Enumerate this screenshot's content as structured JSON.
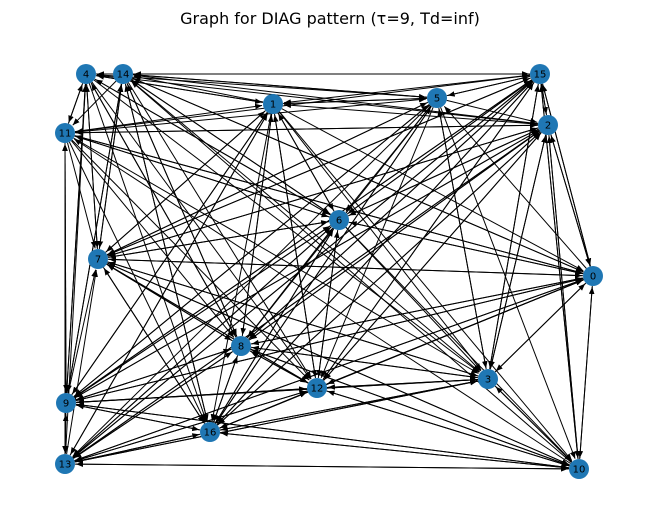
{
  "title": "Graph for DIAG pattern (τ=9, Td=inf)",
  "colors": {
    "node": "#1f77b4",
    "edge": "#000000",
    "background": "#ffffff"
  },
  "graph": {
    "directed": true,
    "node_ids": [
      "0",
      "1",
      "2",
      "3",
      "4",
      "5",
      "6",
      "7",
      "8",
      "9",
      "10",
      "11",
      "12",
      "13",
      "14",
      "15",
      "16"
    ],
    "edges": [
      [
        "4",
        "15"
      ],
      [
        "14",
        "15"
      ],
      [
        "4",
        "1"
      ],
      [
        "14",
        "5"
      ],
      [
        "11",
        "1"
      ],
      [
        "11",
        "5"
      ],
      [
        "11",
        "2"
      ],
      [
        "15",
        "14"
      ],
      [
        "15",
        "4"
      ],
      [
        "15",
        "1"
      ],
      [
        "15",
        "11"
      ],
      [
        "2",
        "14"
      ],
      [
        "2",
        "4"
      ],
      [
        "2",
        "1"
      ],
      [
        "2",
        "11"
      ],
      [
        "5",
        "14"
      ],
      [
        "5",
        "4"
      ],
      [
        "1",
        "14"
      ],
      [
        "1",
        "4"
      ],
      [
        "1",
        "5"
      ],
      [
        "5",
        "1"
      ],
      [
        "15",
        "2"
      ],
      [
        "2",
        "15"
      ],
      [
        "5",
        "15"
      ],
      [
        "15",
        "5"
      ],
      [
        "5",
        "2"
      ],
      [
        "4",
        "11"
      ],
      [
        "14",
        "11"
      ],
      [
        "11",
        "4"
      ],
      [
        "4",
        "7"
      ],
      [
        "14",
        "7"
      ],
      [
        "11",
        "7"
      ],
      [
        "4",
        "9"
      ],
      [
        "14",
        "9"
      ],
      [
        "11",
        "9"
      ],
      [
        "11",
        "13"
      ],
      [
        "4",
        "13"
      ],
      [
        "9",
        "11"
      ],
      [
        "13",
        "11"
      ],
      [
        "7",
        "4"
      ],
      [
        "7",
        "14"
      ],
      [
        "9",
        "4"
      ],
      [
        "9",
        "7"
      ],
      [
        "14",
        "6"
      ],
      [
        "14",
        "8"
      ],
      [
        "14",
        "12"
      ],
      [
        "14",
        "3"
      ],
      [
        "14",
        "16"
      ],
      [
        "14",
        "0"
      ],
      [
        "4",
        "6"
      ],
      [
        "4",
        "8"
      ],
      [
        "4",
        "12"
      ],
      [
        "4",
        "16"
      ],
      [
        "4",
        "3"
      ],
      [
        "11",
        "6"
      ],
      [
        "11",
        "8"
      ],
      [
        "11",
        "12"
      ],
      [
        "11",
        "3"
      ],
      [
        "11",
        "0"
      ],
      [
        "11",
        "16"
      ],
      [
        "1",
        "7"
      ],
      [
        "1",
        "9"
      ],
      [
        "1",
        "13"
      ],
      [
        "1",
        "8"
      ],
      [
        "1",
        "16"
      ],
      [
        "1",
        "12"
      ],
      [
        "1",
        "3"
      ],
      [
        "1",
        "6"
      ],
      [
        "1",
        "0"
      ],
      [
        "1",
        "10"
      ],
      [
        "5",
        "7"
      ],
      [
        "5",
        "9"
      ],
      [
        "5",
        "13"
      ],
      [
        "5",
        "8"
      ],
      [
        "5",
        "16"
      ],
      [
        "5",
        "12"
      ],
      [
        "5",
        "3"
      ],
      [
        "5",
        "10"
      ],
      [
        "5",
        "6"
      ],
      [
        "15",
        "7"
      ],
      [
        "15",
        "9"
      ],
      [
        "15",
        "13"
      ],
      [
        "15",
        "8"
      ],
      [
        "15",
        "16"
      ],
      [
        "15",
        "12"
      ],
      [
        "15",
        "6"
      ],
      [
        "15",
        "3"
      ],
      [
        "15",
        "0"
      ],
      [
        "15",
        "10"
      ],
      [
        "2",
        "7"
      ],
      [
        "2",
        "9"
      ],
      [
        "2",
        "13"
      ],
      [
        "2",
        "8"
      ],
      [
        "2",
        "16"
      ],
      [
        "2",
        "12"
      ],
      [
        "2",
        "6"
      ],
      [
        "2",
        "3"
      ],
      [
        "2",
        "0"
      ],
      [
        "2",
        "10"
      ],
      [
        "6",
        "7"
      ],
      [
        "6",
        "9"
      ],
      [
        "6",
        "13"
      ],
      [
        "6",
        "16"
      ],
      [
        "6",
        "8"
      ],
      [
        "6",
        "12"
      ],
      [
        "6",
        "3"
      ],
      [
        "6",
        "0"
      ],
      [
        "6",
        "10"
      ],
      [
        "6",
        "14"
      ],
      [
        "6",
        "4"
      ],
      [
        "6",
        "11"
      ],
      [
        "6",
        "1"
      ],
      [
        "6",
        "15"
      ],
      [
        "6",
        "2"
      ],
      [
        "7",
        "0"
      ],
      [
        "7",
        "3"
      ],
      [
        "7",
        "12"
      ],
      [
        "7",
        "8"
      ],
      [
        "7",
        "16"
      ],
      [
        "7",
        "10"
      ],
      [
        "7",
        "6"
      ],
      [
        "7",
        "1"
      ],
      [
        "7",
        "5"
      ],
      [
        "7",
        "15"
      ],
      [
        "7",
        "2"
      ],
      [
        "0",
        "7"
      ],
      [
        "0",
        "9"
      ],
      [
        "0",
        "13"
      ],
      [
        "0",
        "8"
      ],
      [
        "0",
        "16"
      ],
      [
        "0",
        "12"
      ],
      [
        "0",
        "3"
      ],
      [
        "0",
        "6"
      ],
      [
        "0",
        "2"
      ],
      [
        "0",
        "15"
      ],
      [
        "0",
        "5"
      ],
      [
        "0",
        "14"
      ],
      [
        "0",
        "11"
      ],
      [
        "8",
        "3"
      ],
      [
        "8",
        "12"
      ],
      [
        "8",
        "16"
      ],
      [
        "8",
        "9"
      ],
      [
        "8",
        "13"
      ],
      [
        "8",
        "0"
      ],
      [
        "8",
        "10"
      ],
      [
        "8",
        "6"
      ],
      [
        "8",
        "1"
      ],
      [
        "8",
        "15"
      ],
      [
        "8",
        "2"
      ],
      [
        "8",
        "14"
      ],
      [
        "8",
        "4"
      ],
      [
        "8",
        "7"
      ],
      [
        "3",
        "8"
      ],
      [
        "3",
        "12"
      ],
      [
        "3",
        "16"
      ],
      [
        "3",
        "9"
      ],
      [
        "3",
        "13"
      ],
      [
        "3",
        "7"
      ],
      [
        "3",
        "0"
      ],
      [
        "3",
        "2"
      ],
      [
        "3",
        "15"
      ],
      [
        "3",
        "5"
      ],
      [
        "3",
        "10"
      ],
      [
        "12",
        "9"
      ],
      [
        "12",
        "13"
      ],
      [
        "12",
        "16"
      ],
      [
        "12",
        "3"
      ],
      [
        "12",
        "10"
      ],
      [
        "12",
        "0"
      ],
      [
        "12",
        "2"
      ],
      [
        "12",
        "15"
      ],
      [
        "12",
        "6"
      ],
      [
        "12",
        "1"
      ],
      [
        "12",
        "7"
      ],
      [
        "12",
        "8"
      ],
      [
        "9",
        "12"
      ],
      [
        "9",
        "3"
      ],
      [
        "9",
        "0"
      ],
      [
        "9",
        "16"
      ],
      [
        "9",
        "10"
      ],
      [
        "9",
        "8"
      ],
      [
        "9",
        "6"
      ],
      [
        "9",
        "1"
      ],
      [
        "9",
        "5"
      ],
      [
        "9",
        "2"
      ],
      [
        "9",
        "15"
      ],
      [
        "9",
        "14"
      ],
      [
        "9",
        "13"
      ],
      [
        "13",
        "9"
      ],
      [
        "13",
        "3"
      ],
      [
        "13",
        "12"
      ],
      [
        "13",
        "16"
      ],
      [
        "13",
        "0"
      ],
      [
        "13",
        "10"
      ],
      [
        "13",
        "8"
      ],
      [
        "13",
        "6"
      ],
      [
        "13",
        "2"
      ],
      [
        "13",
        "15"
      ],
      [
        "13",
        "7"
      ],
      [
        "13",
        "1"
      ],
      [
        "16",
        "10"
      ],
      [
        "16",
        "3"
      ],
      [
        "16",
        "12"
      ],
      [
        "16",
        "0"
      ],
      [
        "16",
        "9"
      ],
      [
        "16",
        "13"
      ],
      [
        "16",
        "8"
      ],
      [
        "16",
        "6"
      ],
      [
        "16",
        "2"
      ],
      [
        "16",
        "15"
      ],
      [
        "16",
        "5"
      ],
      [
        "16",
        "7"
      ],
      [
        "16",
        "14"
      ],
      [
        "10",
        "16"
      ],
      [
        "10",
        "13"
      ],
      [
        "10",
        "9"
      ],
      [
        "10",
        "3"
      ],
      [
        "10",
        "12"
      ],
      [
        "10",
        "7"
      ],
      [
        "10",
        "0"
      ],
      [
        "10",
        "2"
      ],
      [
        "10",
        "15"
      ],
      [
        "10",
        "8"
      ],
      [
        "10",
        "14"
      ],
      [
        "10",
        "11"
      ],
      [
        "0",
        "10"
      ],
      [
        "3",
        "10"
      ],
      [
        "2",
        "3"
      ],
      [
        "0",
        "3"
      ],
      [
        "2",
        "0"
      ],
      [
        "15",
        "0"
      ]
    ]
  }
}
